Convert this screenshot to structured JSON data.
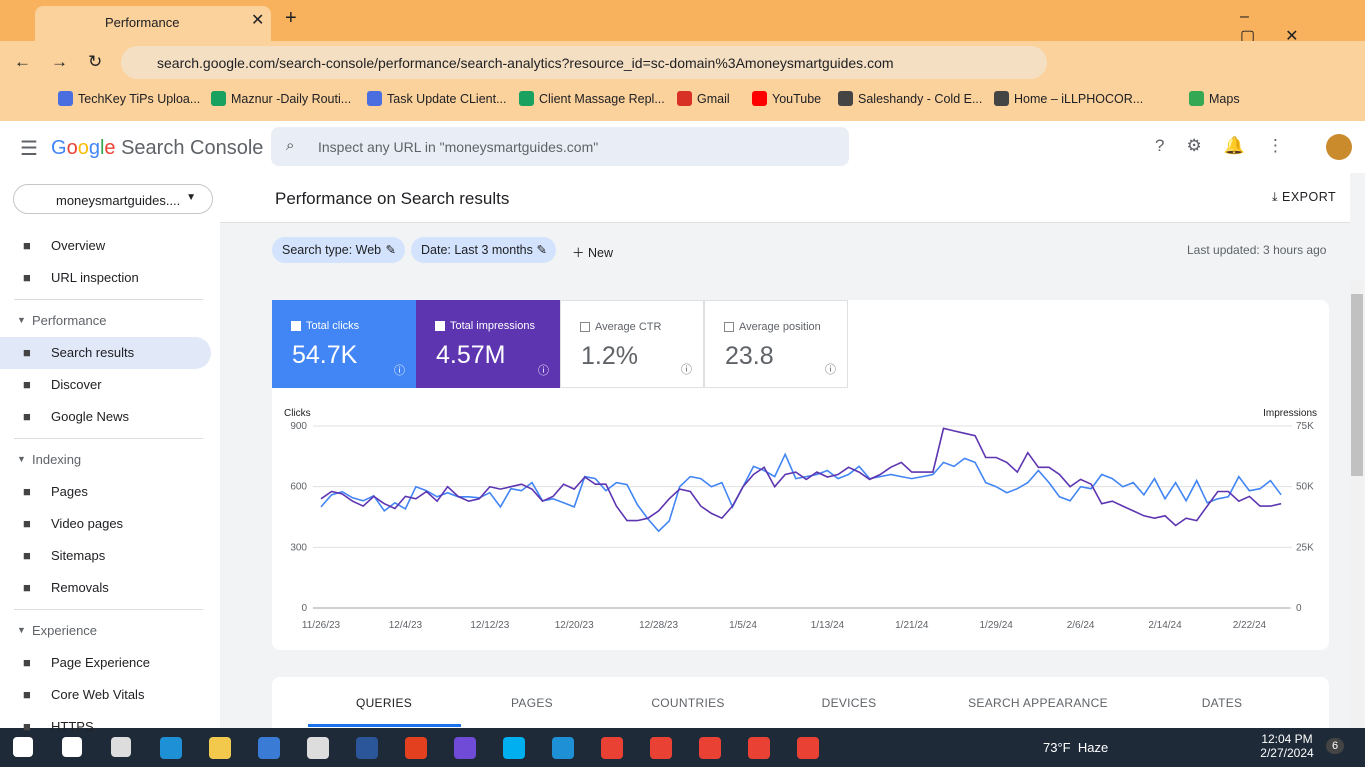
{
  "browser": {
    "tab_title": "Performance",
    "url": "search.google.com/search-console/performance/search-analytics?resource_id=sc-domain%3Amoneysmartguides.com",
    "bookmarks": [
      "TechKey TiPs Uploa...",
      "Maznur -Daily Routi...",
      "Task Update CLient...",
      "Client Massage Repl...",
      "Gmail",
      "YouTube",
      "Saleshandy - Cold E...",
      "Home – iLLPHOCOR...",
      "Maps"
    ]
  },
  "header": {
    "logo": "Google",
    "product": "Search Console",
    "search_placeholder": "Inspect any URL in \"moneysmartguides.com\""
  },
  "sidebar": {
    "property": "moneysmartguides....",
    "top_items": [
      "Overview",
      "URL inspection"
    ],
    "sections": [
      {
        "title": "Performance",
        "items": [
          "Search results",
          "Discover",
          "Google News"
        ]
      },
      {
        "title": "Indexing",
        "items": [
          "Pages",
          "Video pages",
          "Sitemaps",
          "Removals"
        ]
      },
      {
        "title": "Experience",
        "items": [
          "Page Experience",
          "Core Web Vitals",
          "HTTPS"
        ]
      }
    ]
  },
  "main": {
    "title": "Performance on Search results",
    "export": "EXPORT",
    "filters": [
      "Search type: Web",
      "Date: Last 3 months"
    ],
    "new_filter": "New",
    "last_updated": "Last updated: 3 hours ago",
    "metrics": [
      {
        "label": "Total clicks",
        "value": "54.7K"
      },
      {
        "label": "Total impressions",
        "value": "4.57M"
      },
      {
        "label": "Average CTR",
        "value": "1.2%"
      },
      {
        "label": "Average position",
        "value": "23.8"
      }
    ],
    "tabs": [
      "QUERIES",
      "PAGES",
      "COUNTRIES",
      "DEVICES",
      "SEARCH APPEARANCE",
      "DATES"
    ]
  },
  "chart_data": {
    "type": "line",
    "y_label": "Clicks",
    "y2_label": "Impressions",
    "categories": [
      "11/26/23",
      null,
      null,
      null,
      null,
      null,
      null,
      null,
      "12/4/23",
      null,
      null,
      null,
      null,
      null,
      null,
      null,
      "12/12/23",
      null,
      null,
      null,
      null,
      null,
      null,
      null,
      "12/20/23",
      null,
      null,
      null,
      null,
      null,
      null,
      null,
      "12/28/23",
      null,
      null,
      null,
      null,
      null,
      null,
      null,
      "1/5/24",
      null,
      null,
      null,
      null,
      null,
      null,
      null,
      "1/13/24",
      null,
      null,
      null,
      null,
      null,
      null,
      null,
      "1/21/24",
      null,
      null,
      null,
      null,
      null,
      null,
      null,
      "1/29/24",
      null,
      null,
      null,
      null,
      null,
      null,
      null,
      "2/6/24",
      null,
      null,
      null,
      null,
      null,
      null,
      null,
      "2/14/24",
      null,
      null,
      null,
      null,
      null,
      null,
      null,
      "2/22/24",
      null,
      null,
      null
    ],
    "ylim": [
      0,
      900
    ],
    "yticks": [
      0,
      300,
      600,
      900
    ],
    "y2lim": [
      0,
      75000
    ],
    "y2ticks": [
      0,
      {
        "value": 25000,
        "label": "25K"
      },
      {
        "value": 50000,
        "label": "50K"
      },
      {
        "value": 75000,
        "label": "75K"
      }
    ],
    "grid": true,
    "series": [
      {
        "name": "Clicks",
        "color": "#4285f4",
        "values": [
          500,
          560,
          575,
          545,
          530,
          555,
          480,
          520,
          490,
          600,
          580,
          550,
          570,
          550,
          550,
          545,
          570,
          500,
          590,
          580,
          620,
          530,
          540,
          520,
          500,
          650,
          640,
          580,
          620,
          610,
          510,
          440,
          380,
          430,
          600,
          650,
          640,
          600,
          620,
          500,
          600,
          700,
          680,
          650,
          760,
          640,
          650,
          660,
          680,
          640,
          660,
          700,
          640,
          650,
          660,
          650,
          640,
          650,
          660,
          720,
          700,
          740,
          720,
          620,
          600,
          570,
          590,
          620,
          680,
          620,
          550,
          530,
          600,
          590,
          660,
          640,
          600,
          620,
          560,
          640,
          540,
          620,
          530,
          630,
          520,
          540,
          550,
          650,
          580,
          590,
          630,
          560
        ]
      },
      {
        "name": "Impressions",
        "color": "#5e35b1",
        "axis": "y2",
        "values": [
          45000,
          48000,
          47000,
          44000,
          42000,
          46000,
          43000,
          41000,
          46000,
          45000,
          48000,
          44000,
          50000,
          46000,
          44000,
          45000,
          50000,
          49000,
          50000,
          51000,
          49000,
          44000,
          46000,
          51000,
          49000,
          54000,
          51000,
          51000,
          42000,
          36000,
          36000,
          37000,
          40000,
          45000,
          49000,
          48000,
          42000,
          39000,
          37000,
          42000,
          50000,
          55000,
          58000,
          50000,
          55000,
          56000,
          53000,
          56000,
          54000,
          55000,
          58000,
          56000,
          53000,
          55000,
          58000,
          60000,
          56000,
          56000,
          56000,
          74000,
          73000,
          72000,
          71000,
          62000,
          62000,
          60000,
          56000,
          64000,
          58000,
          58000,
          55000,
          50000,
          53000,
          51000,
          43000,
          44000,
          42000,
          40000,
          38000,
          37000,
          38000,
          34000,
          37000,
          36000,
          42000,
          48000,
          48000,
          44000,
          46000,
          42000,
          42000,
          43000
        ]
      }
    ]
  },
  "taskbar": {
    "temperature": "73°F",
    "weather": "Haze",
    "time": "12:04 PM",
    "date": "2/27/2024",
    "notifications": "6"
  }
}
